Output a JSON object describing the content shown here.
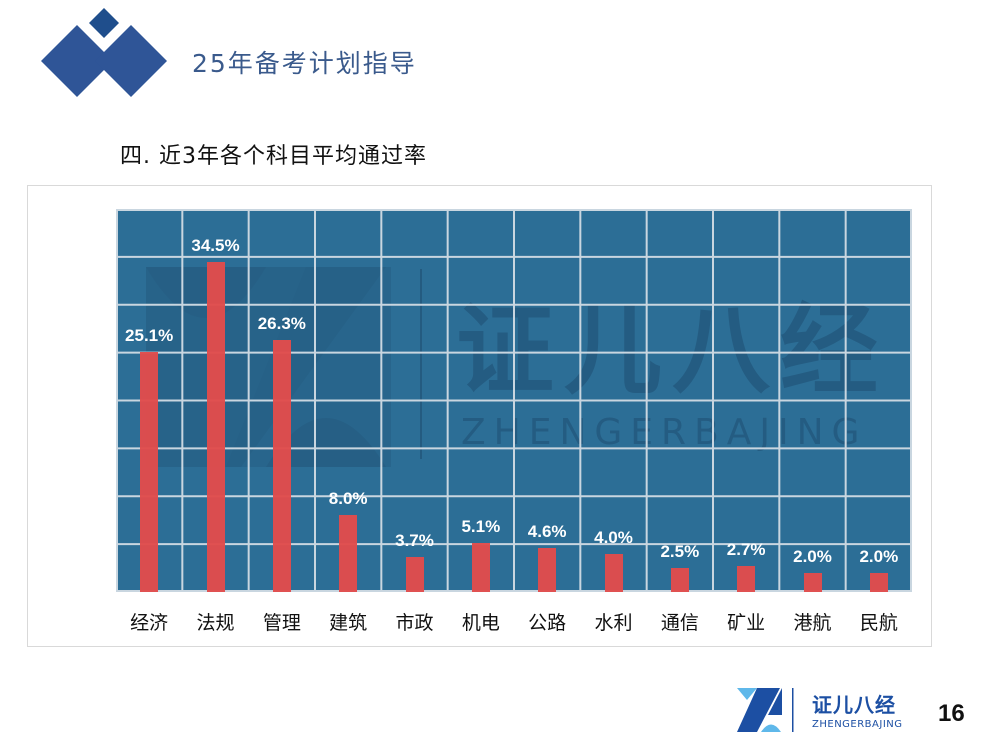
{
  "header": {
    "title": "25年备考计划指导",
    "logo_color": "#2f5597",
    "logo_small_color": "#1f4e8c"
  },
  "section": {
    "title": "四. 近3年各个科目平均通过率"
  },
  "chart_data": {
    "type": "bar",
    "title": "近3年各个科目平均通过率",
    "categories": [
      "经济",
      "法规",
      "管理",
      "建筑",
      "市政",
      "机电",
      "公路",
      "水利",
      "通信",
      "矿业",
      "港航",
      "民航"
    ],
    "values": [
      25.1,
      34.5,
      26.3,
      8.0,
      3.7,
      5.1,
      4.6,
      4.0,
      2.5,
      2.7,
      2.0,
      2.0
    ],
    "labels": [
      "25.1%",
      "34.5%",
      "26.3%",
      "8.0%",
      "3.7%",
      "5.1%",
      "4.6%",
      "4.0%",
      "2.5%",
      "2.7%",
      "2.0%",
      "2.0%"
    ],
    "xlabel": "",
    "ylabel": "",
    "unit": "%",
    "ylim": [
      0,
      40
    ],
    "grid": true,
    "y_grid_step": 5,
    "legend": "none",
    "colors": {
      "plot_background": "#2c6e96",
      "bar": "#e04c4c",
      "grid": "#c9d6e0",
      "data_label": "#ffffff"
    }
  },
  "watermark": {
    "brand_cn": "证儿八经",
    "brand_en": "ZHENGERBAJING"
  },
  "footer": {
    "brand_cn": "证儿八经",
    "brand_en": "ZHENGERBAJING",
    "page_number": "16"
  }
}
